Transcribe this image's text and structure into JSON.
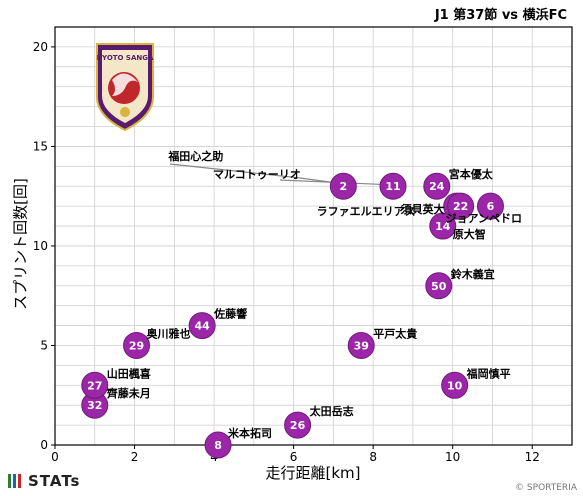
{
  "header": {
    "title": "J1 第37節 vs 横浜FC"
  },
  "footer": {
    "brand": "STATs",
    "credit": "© SPORTERIA"
  },
  "logo": {
    "text": "KYOTO SANGA"
  },
  "colors": {
    "point": "#9b27a8",
    "point_edge": "#6f1a7a",
    "grid": "#cfcfcf",
    "axis": "#000000"
  },
  "chart_data": {
    "type": "scatter",
    "xlabel": "走行距離[km]",
    "ylabel": "スプリント回数[回]",
    "xlim": [
      0,
      13
    ],
    "ylim": [
      0,
      21
    ],
    "xticks": [
      0,
      2,
      4,
      6,
      8,
      10,
      12
    ],
    "yticks": [
      0,
      5,
      10,
      15,
      20
    ],
    "grid": true,
    "points": [
      {
        "number": "8",
        "name": "米本拓司",
        "x": 4.1,
        "y": 0
      },
      {
        "number": "26",
        "name": "太田岳志",
        "x": 6.1,
        "y": 1
      },
      {
        "number": "32",
        "name": "齊藤未月",
        "x": 1.0,
        "y": 2
      },
      {
        "number": "27",
        "name": "山田楓喜",
        "x": 1.0,
        "y": 3
      },
      {
        "number": "29",
        "name": "奥川雅也",
        "x": 2.05,
        "y": 5
      },
      {
        "number": "44",
        "name": "佐藤響",
        "x": 3.7,
        "y": 6
      },
      {
        "number": "39",
        "name": "平戸太貴",
        "x": 7.7,
        "y": 5
      },
      {
        "number": "10",
        "name": "福岡慎平",
        "x": 10.05,
        "y": 3
      },
      {
        "number": "50",
        "name": "鈴木義宜",
        "x": 9.65,
        "y": 8
      },
      {
        "number": "2",
        "name": "福田心之助",
        "x": 7.25,
        "y": 13
      },
      {
        "number": "11",
        "name": "マルコトゥーリオ",
        "x": 8.5,
        "y": 13
      },
      {
        "number": "24",
        "name": "宮本優太",
        "x": 9.6,
        "y": 13
      },
      {
        "number": "23",
        "name": "ラファエルエリアス",
        "x": 10.1,
        "y": 12
      },
      {
        "number": "6",
        "name": "ジョアンペドロ",
        "x": 10.95,
        "y": 12
      },
      {
        "number": "14",
        "name": "原大智",
        "x": 9.75,
        "y": 11
      },
      {
        "number": "22",
        "name": "須貝英大",
        "x": 10.2,
        "y": 12
      }
    ]
  }
}
